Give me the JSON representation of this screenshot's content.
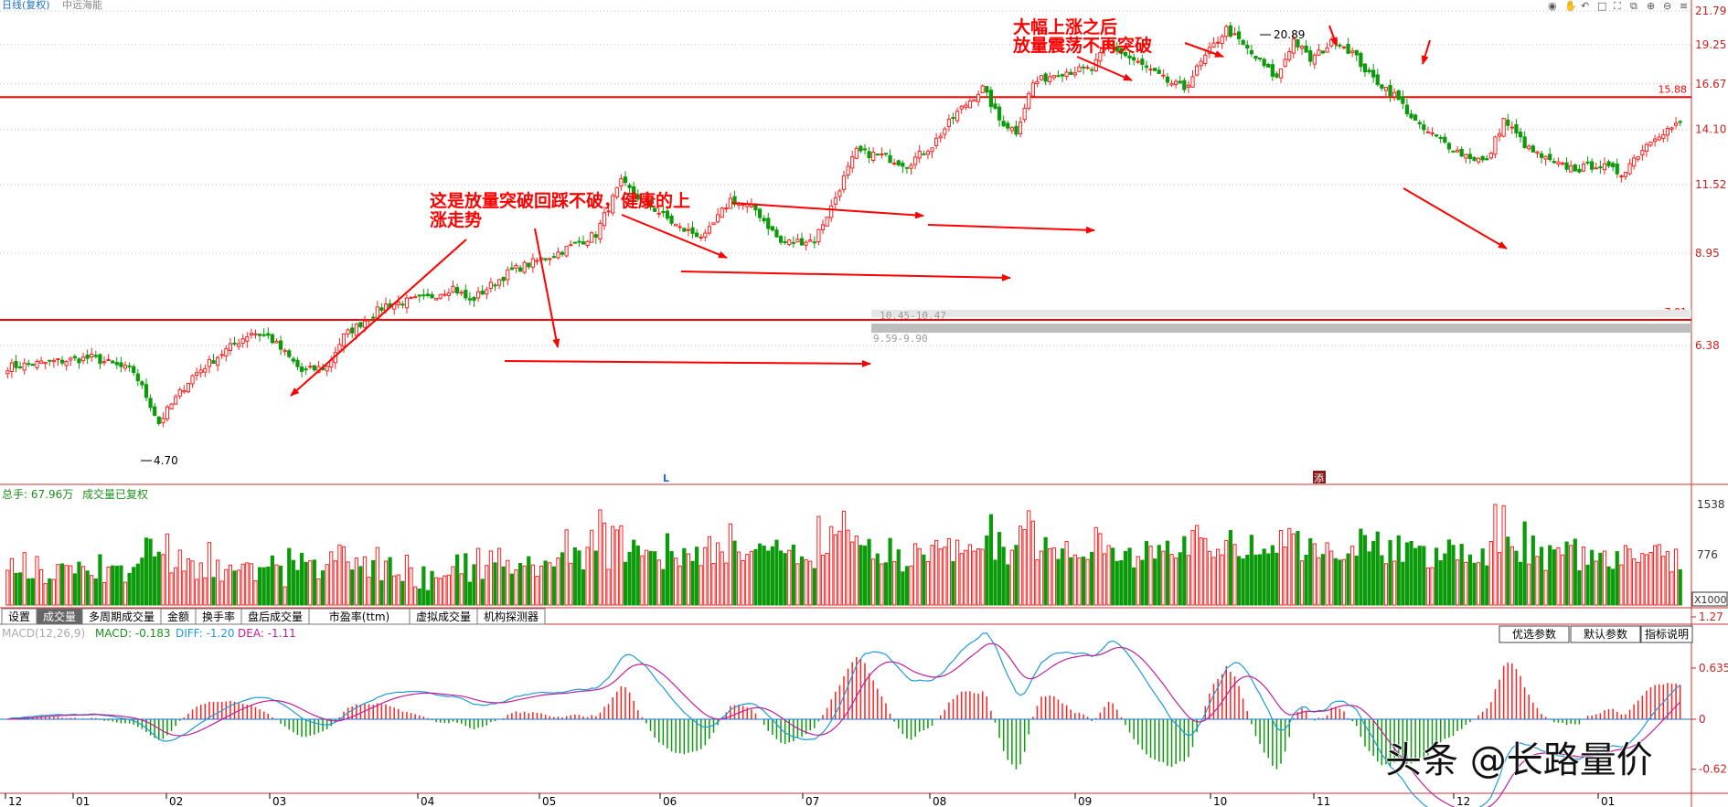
{
  "header": {
    "title": "日线(复权)",
    "subtitle": "中远海能",
    "toolbar_icons": [
      "eye-icon",
      "hand-icon",
      "back-icon",
      "window-icon",
      "fullscreen-icon",
      "restore-icon",
      "zoom-in-icon",
      "zoom-out-icon",
      "menu-icon"
    ]
  },
  "price_axis": {
    "labels": [
      "21.79",
      "19.25",
      "16.67",
      "14.10",
      "11.52",
      "8.95",
      "6.38"
    ],
    "ref_lines": [
      "15.88",
      "7.01"
    ]
  },
  "annotations": {
    "top_note_line1": "大幅上涨之后",
    "top_note_line2": "放量震荡不再突破",
    "left_note_line1": "这是放量突破回踩不破，健康的上",
    "left_note_line2": "涨走势",
    "high_label": "20.89",
    "low_label": "4.70",
    "gap_label_1": "10.45-10.47",
    "gap_label_2": "9.59-9.90",
    "marker_L": "L",
    "marker_box": "添"
  },
  "volume_panel": {
    "title": "总手: 67.96万",
    "subtitle": "成交量已复权",
    "axis_labels": [
      "1538",
      "776"
    ],
    "unit": "X1000"
  },
  "tabs": [
    "设置",
    "成交量",
    "多周期成交量",
    "金额",
    "换手率",
    "盘后成交量",
    "市盈率(ttm)",
    "虚拟成交量",
    "机构探测器"
  ],
  "macd_panel": {
    "label": "MACD(12,26,9)",
    "macd": "MACD: -0.183",
    "diff": "DIFF: -1.20",
    "dea": "DEA: -1.11",
    "buttons": [
      "优选参数",
      "默认参数",
      "指标说明"
    ],
    "axis_labels": [
      "1.27",
      "0.635",
      "0",
      "-0.620"
    ]
  },
  "time_axis": [
    "12",
    "01",
    "02",
    "03",
    "04",
    "05",
    "06",
    "07",
    "08",
    "09",
    "10",
    "11",
    "12",
    "01"
  ],
  "watermark": "头条 @长路量价",
  "colors": {
    "up": "#ff2020",
    "down": "#0a9a0a",
    "ref": "#ff0000",
    "diff": "#1e9bd7",
    "dea": "#c01f9a",
    "note": "#ff0000"
  },
  "chart_data": {
    "type": "candlestick",
    "y_axis": "log",
    "ylim": [
      5.2,
      22.5
    ],
    "anchors": [
      [
        0,
        5.9
      ],
      [
        20,
        6.1
      ],
      [
        30,
        5.8
      ],
      [
        36,
        4.8
      ],
      [
        44,
        5.7
      ],
      [
        58,
        6.7
      ],
      [
        62,
        6.6
      ],
      [
        70,
        5.8
      ],
      [
        76,
        5.9
      ],
      [
        80,
        6.6
      ],
      [
        90,
        7.4
      ],
      [
        100,
        7.6
      ],
      [
        106,
        7.9
      ],
      [
        110,
        7.5
      ],
      [
        120,
        8.4
      ],
      [
        130,
        8.9
      ],
      [
        140,
        9.6
      ],
      [
        146,
        11.6
      ],
      [
        150,
        11.0
      ],
      [
        160,
        9.8
      ],
      [
        166,
        9.5
      ],
      [
        172,
        10.9
      ],
      [
        178,
        10.5
      ],
      [
        184,
        9.3
      ],
      [
        192,
        9.4
      ],
      [
        196,
        10.6
      ],
      [
        202,
        13.0
      ],
      [
        208,
        12.8
      ],
      [
        214,
        12.4
      ],
      [
        220,
        13.3
      ],
      [
        226,
        15.0
      ],
      [
        232,
        16.4
      ],
      [
        236,
        14.6
      ],
      [
        240,
        14.0
      ],
      [
        244,
        16.7
      ],
      [
        250,
        17.4
      ],
      [
        258,
        17.6
      ],
      [
        262,
        19.3
      ],
      [
        266,
        18.5
      ],
      [
        276,
        16.8
      ],
      [
        280,
        16.4
      ],
      [
        286,
        18.8
      ],
      [
        290,
        20.4
      ],
      [
        296,
        18.6
      ],
      [
        302,
        17.0
      ],
      [
        306,
        19.6
      ],
      [
        310,
        18.2
      ],
      [
        316,
        19.6
      ],
      [
        320,
        18.7
      ],
      [
        324,
        17.2
      ],
      [
        330,
        16.0
      ],
      [
        336,
        14.2
      ],
      [
        346,
        12.9
      ],
      [
        352,
        12.5
      ],
      [
        356,
        14.6
      ],
      [
        362,
        13.1
      ],
      [
        368,
        12.4
      ],
      [
        374,
        12.2
      ],
      [
        378,
        12.4
      ],
      [
        384,
        12.0
      ],
      [
        392,
        13.8
      ],
      [
        398,
        14.4
      ]
    ],
    "volume_range": [
      0,
      1538
    ],
    "volume_unit": "X1000",
    "macd_range": [
      -1.27,
      1.27
    ],
    "last_macd": -0.183,
    "last_diff": -1.2,
    "last_dea": -1.11
  }
}
